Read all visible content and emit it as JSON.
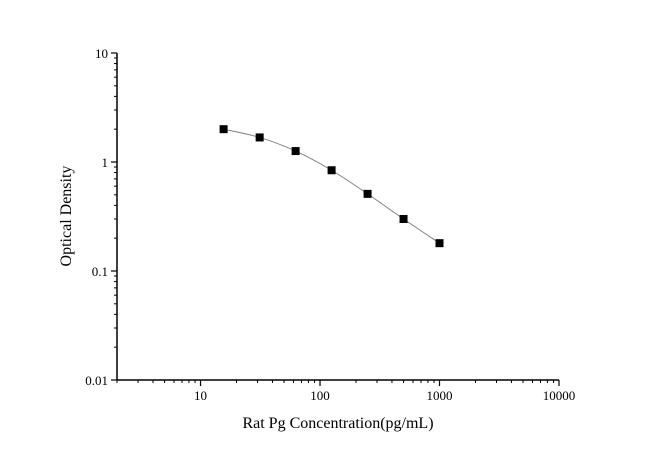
{
  "chart_data": {
    "type": "line",
    "xlabel": "Rat Pg Concentration(pg/mL)",
    "ylabel": "Optical Density",
    "xscale": "log",
    "yscale": "log",
    "xlim": [
      2,
      10000
    ],
    "ylim": [
      0.01,
      10
    ],
    "xticks": [
      "10",
      "100",
      "1000",
      "10000"
    ],
    "yticks": [
      "0.01",
      "0.1",
      "1",
      "10"
    ],
    "grid": false,
    "marker": "square",
    "colors": {
      "marker": "#000000",
      "line": "#808080"
    },
    "x": [
      15.6,
      31.25,
      62.5,
      125,
      250,
      500,
      1000
    ],
    "y": [
      2.0,
      1.68,
      1.26,
      0.84,
      0.51,
      0.3,
      0.18
    ]
  }
}
